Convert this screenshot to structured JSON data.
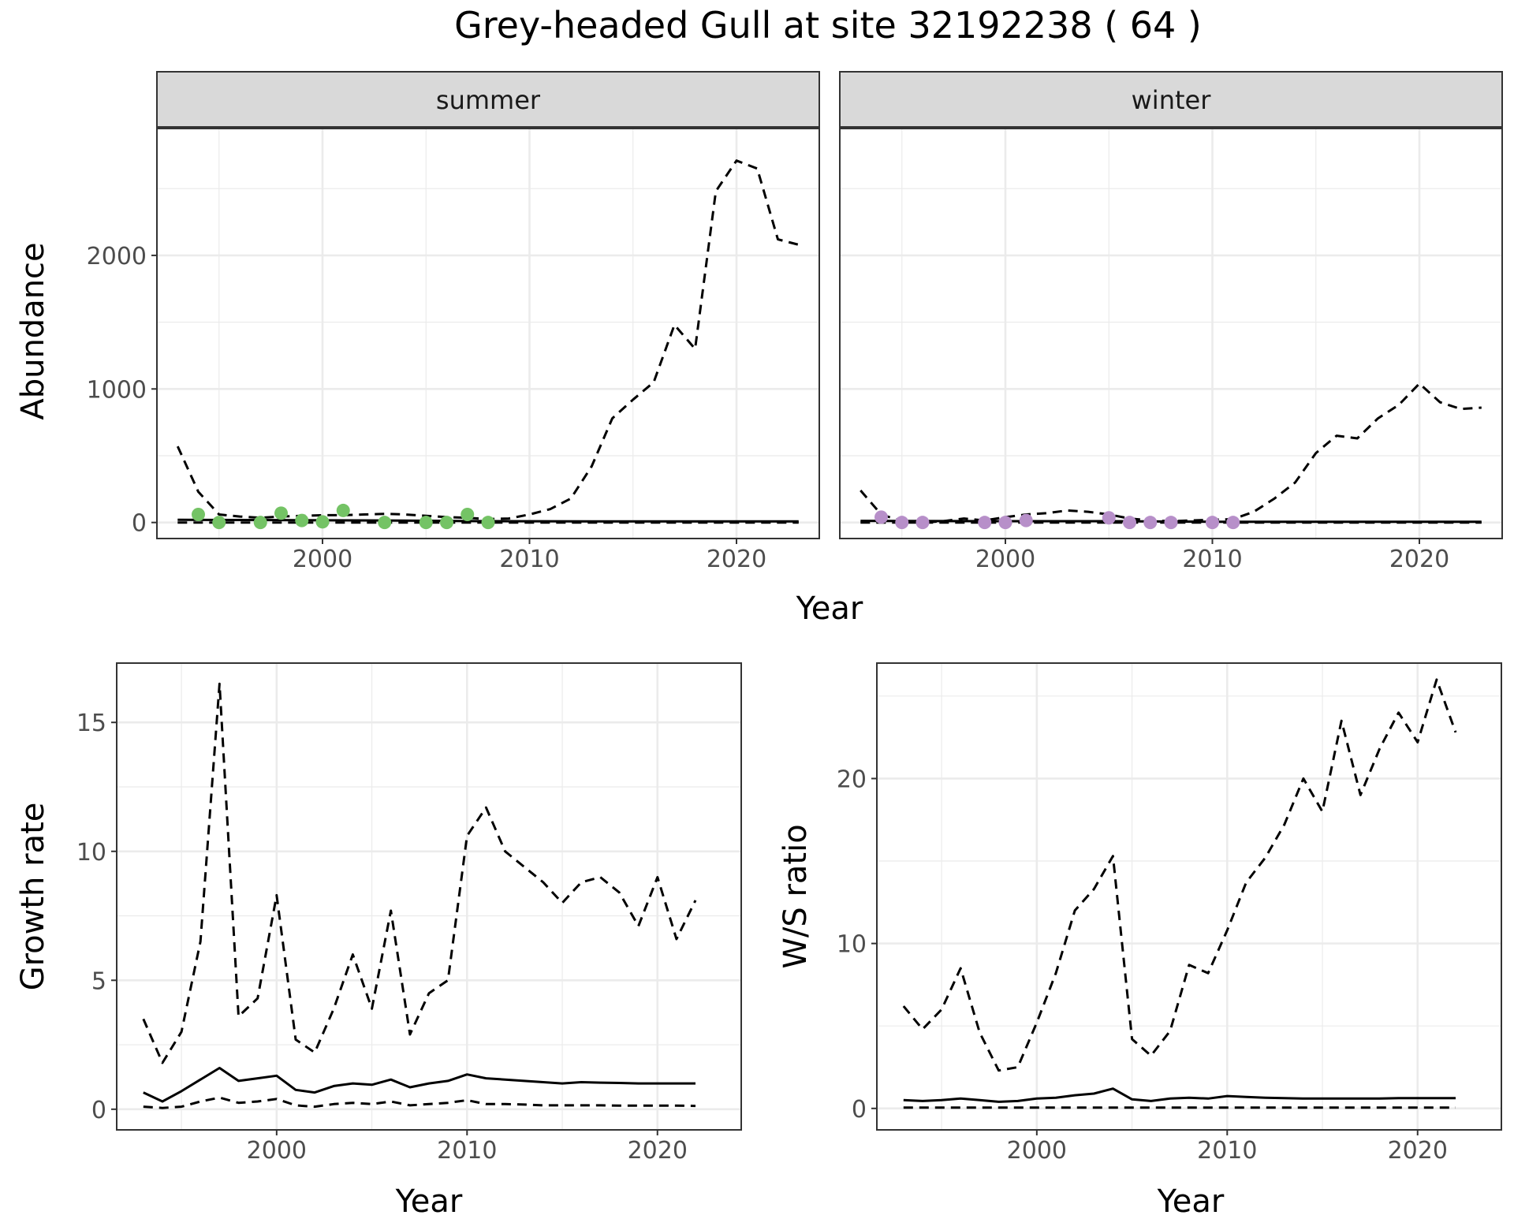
{
  "title": "Grey-headed Gull at site 32192238 ( 64 )",
  "colors": {
    "summer_points": "#74c365",
    "winter_points": "#b78fc9",
    "line": "#000000",
    "grid": "#ebebeb",
    "strip_fill": "#d9d9d9",
    "strip_border": "#333333"
  },
  "chart_data": [
    {
      "type": "line",
      "panel": "abundance",
      "facets": [
        "summer",
        "winter"
      ],
      "xlabel": "Year",
      "ylabel": "Abundance",
      "xlim": [
        1992,
        2024
      ],
      "ylim": [
        -120,
        2950
      ],
      "x_ticks": [
        2000,
        2010,
        2020
      ],
      "y_ticks": [
        0,
        1000,
        2000
      ],
      "grid": true,
      "facet_series": {
        "summer": {
          "points": {
            "x": [
              1994,
              1995,
              1997,
              1998,
              1999,
              2000,
              2001,
              2003,
              2005,
              2006,
              2007,
              2008
            ],
            "y": [
              60,
              0,
              0,
              70,
              15,
              5,
              90,
              0,
              0,
              0,
              60,
              0
            ]
          },
          "upper": {
            "x": [
              1993,
              1994,
              1995,
              1996,
              1997,
              1998,
              1999,
              2000,
              2001,
              2002,
              2003,
              2004,
              2005,
              2006,
              2007,
              2008,
              2009,
              2010,
              2011,
              2012,
              2013,
              2014,
              2015,
              2016,
              2017,
              2018,
              2019,
              2020,
              2021,
              2022,
              2023
            ],
            "y": [
              570,
              230,
              60,
              45,
              35,
              45,
              50,
              55,
              55,
              60,
              65,
              60,
              50,
              40,
              35,
              25,
              30,
              60,
              100,
              180,
              420,
              780,
              920,
              1050,
              1480,
              1300,
              2480,
              2710,
              2650,
              2120,
              2080
            ]
          },
          "mean": {
            "x": [
              1993,
              1998,
              2003,
              2008,
              2013,
              2018,
              2023
            ],
            "y": [
              20,
              18,
              15,
              10,
              8,
              8,
              8
            ]
          },
          "lower": {
            "x": [
              1993,
              2000,
              2010,
              2023
            ],
            "y": [
              0,
              0,
              0,
              0
            ]
          }
        },
        "winter": {
          "points": {
            "x": [
              1994,
              1995,
              1996,
              1999,
              2000,
              2001,
              2005,
              2006,
              2007,
              2008,
              2010,
              2011
            ],
            "y": [
              40,
              0,
              0,
              0,
              0,
              15,
              35,
              0,
              0,
              0,
              0,
              0
            ]
          },
          "upper": {
            "x": [
              1993,
              1994,
              1995,
              1996,
              1997,
              1998,
              1999,
              2000,
              2001,
              2002,
              2003,
              2004,
              2005,
              2006,
              2007,
              2008,
              2009,
              2010,
              2011,
              2012,
              2013,
              2014,
              2015,
              2016,
              2017,
              2018,
              2019,
              2020,
              2021,
              2022,
              2023
            ],
            "y": [
              240,
              60,
              10,
              0,
              10,
              30,
              15,
              40,
              60,
              70,
              90,
              80,
              60,
              30,
              15,
              10,
              15,
              20,
              25,
              80,
              180,
              300,
              520,
              650,
              630,
              780,
              880,
              1040,
              900,
              850,
              860
            ]
          },
          "mean": {
            "x": [
              1993,
              2000,
              2005,
              2010,
              2015,
              2023
            ],
            "y": [
              12,
              10,
              10,
              6,
              6,
              6
            ]
          },
          "lower": {
            "x": [
              1993,
              2023
            ],
            "y": [
              0,
              0
            ]
          }
        }
      }
    },
    {
      "type": "line",
      "panel": "growth",
      "xlabel": "Year",
      "ylabel": "Growth rate",
      "xlim": [
        1991.6,
        2024.4
      ],
      "ylim": [
        -0.8,
        17.3
      ],
      "x_ticks": [
        2000,
        2010,
        2020
      ],
      "y_ticks": [
        0,
        5,
        10,
        15
      ],
      "grid": true,
      "series": [
        {
          "style": "dashed",
          "x": [
            1993,
            1994,
            1995,
            1996,
            1997,
            1998,
            1999,
            2000,
            2001,
            2002,
            2003,
            2004,
            2005,
            2006,
            2007,
            2008,
            2009,
            2010,
            2011,
            2012,
            2013,
            2014,
            2015,
            2016,
            2017,
            2018,
            2019,
            2020,
            2021,
            2022
          ],
          "y": [
            3.5,
            1.8,
            3.0,
            6.5,
            16.5,
            3.6,
            4.3,
            8.3,
            2.7,
            2.2,
            3.9,
            6.0,
            3.9,
            7.7,
            2.9,
            4.5,
            5.0,
            10.6,
            11.7,
            10.0,
            9.4,
            8.8,
            8.0,
            8.8,
            9.0,
            8.4,
            7.1,
            9.0,
            6.6,
            8.1
          ]
        },
        {
          "style": "solid",
          "x": [
            1993,
            1994,
            1995,
            1996,
            1997,
            1998,
            1999,
            2000,
            2001,
            2002,
            2003,
            2004,
            2005,
            2006,
            2007,
            2008,
            2009,
            2010,
            2011,
            2012,
            2013,
            2014,
            2015,
            2016,
            2017,
            2018,
            2019,
            2020,
            2021,
            2022
          ],
          "y": [
            0.65,
            0.3,
            0.7,
            1.15,
            1.6,
            1.1,
            1.2,
            1.3,
            0.75,
            0.65,
            0.9,
            1.0,
            0.95,
            1.15,
            0.85,
            1.0,
            1.1,
            1.35,
            1.2,
            1.15,
            1.1,
            1.05,
            1.0,
            1.05,
            1.03,
            1.02,
            1.0,
            1.0,
            1.0,
            1.0
          ]
        },
        {
          "style": "dashed",
          "x": [
            1993,
            1994,
            1995,
            1996,
            1997,
            1998,
            1999,
            2000,
            2001,
            2002,
            2003,
            2004,
            2005,
            2006,
            2007,
            2008,
            2009,
            2010,
            2011,
            2012,
            2013,
            2014,
            2015,
            2016,
            2017,
            2018,
            2019,
            2020,
            2021,
            2022
          ],
          "y": [
            0.1,
            0.05,
            0.1,
            0.3,
            0.45,
            0.25,
            0.3,
            0.4,
            0.15,
            0.1,
            0.2,
            0.25,
            0.2,
            0.3,
            0.15,
            0.2,
            0.25,
            0.35,
            0.2,
            0.2,
            0.18,
            0.15,
            0.15,
            0.15,
            0.15,
            0.14,
            0.14,
            0.14,
            0.14,
            0.13
          ]
        }
      ]
    },
    {
      "type": "line",
      "panel": "ratio",
      "xlabel": "Year",
      "ylabel": "W/S ratio",
      "xlim": [
        1991.6,
        2024.4
      ],
      "ylim": [
        -1.3,
        27.0
      ],
      "x_ticks": [
        2000,
        2010,
        2020
      ],
      "y_ticks": [
        0,
        10,
        20
      ],
      "grid": true,
      "series": [
        {
          "style": "dashed",
          "x": [
            1993,
            1994,
            1995,
            1996,
            1997,
            1998,
            1999,
            2000,
            2001,
            2002,
            2003,
            2004,
            2005,
            2006,
            2007,
            2008,
            2009,
            2010,
            2011,
            2012,
            2013,
            2014,
            2015,
            2016,
            2017,
            2018,
            2019,
            2020,
            2021,
            2022
          ],
          "y": [
            6.2,
            4.8,
            6.0,
            8.5,
            4.6,
            2.3,
            2.5,
            5.2,
            8.2,
            12.0,
            13.3,
            15.3,
            4.2,
            3.2,
            4.7,
            8.7,
            8.2,
            10.8,
            13.7,
            15.2,
            17.2,
            20.0,
            18.0,
            23.5,
            19.0,
            21.8,
            24.0,
            22.2,
            26.0,
            22.8
          ]
        },
        {
          "style": "solid",
          "x": [
            1993,
            1994,
            1995,
            1996,
            1997,
            1998,
            1999,
            2000,
            2001,
            2002,
            2003,
            2004,
            2005,
            2006,
            2007,
            2008,
            2009,
            2010,
            2011,
            2012,
            2013,
            2014,
            2015,
            2016,
            2017,
            2018,
            2019,
            2020,
            2021,
            2022
          ],
          "y": [
            0.5,
            0.45,
            0.5,
            0.6,
            0.5,
            0.4,
            0.45,
            0.6,
            0.65,
            0.8,
            0.9,
            1.2,
            0.55,
            0.45,
            0.6,
            0.65,
            0.6,
            0.75,
            0.7,
            0.65,
            0.62,
            0.6,
            0.6,
            0.6,
            0.6,
            0.6,
            0.62,
            0.62,
            0.62,
            0.62
          ]
        },
        {
          "style": "dashed",
          "x": [
            1993,
            2000,
            2010,
            2022
          ],
          "y": [
            0.05,
            0.05,
            0.05,
            0.05
          ]
        }
      ]
    }
  ]
}
